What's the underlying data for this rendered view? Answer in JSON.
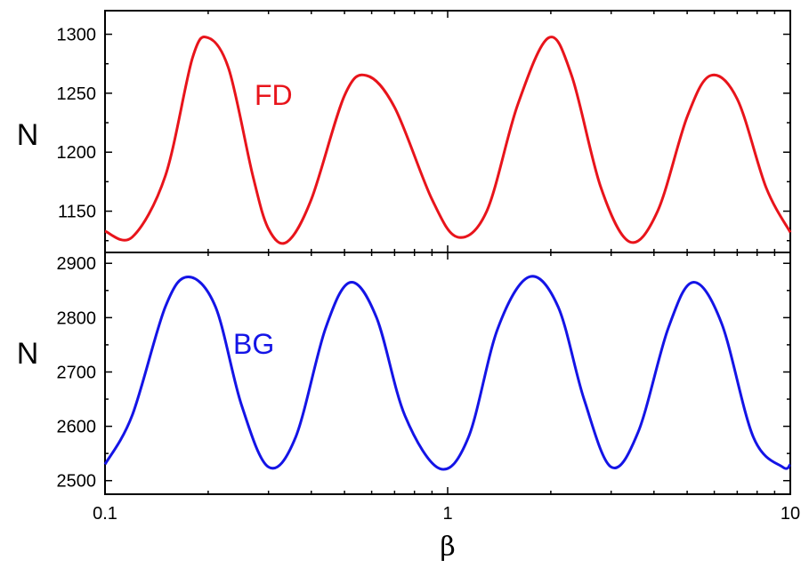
{
  "chart_data": [
    {
      "type": "line",
      "panel": "top",
      "xscale": "log",
      "xlim": [
        0.1,
        10
      ],
      "ylim": [
        1115,
        1320
      ],
      "yticks": [
        1150,
        1200,
        1250,
        1300
      ],
      "ytick_labels": [
        "1150",
        "1200",
        "1250",
        "1300"
      ],
      "ylabel": "N",
      "series": [
        {
          "name": "FD",
          "color": "#e8141b",
          "x": [
            0.1,
            0.12,
            0.15,
            0.18,
            0.2,
            0.23,
            0.27,
            0.3,
            0.34,
            0.4,
            0.5,
            0.58,
            0.7,
            0.9,
            1.07,
            1.3,
            1.6,
            1.97,
            2.3,
            2.8,
            3.4,
            4.1,
            5.0,
            5.85,
            7.0,
            8.5,
            10
          ],
          "y": [
            1133,
            1128,
            1180,
            1280,
            1297,
            1270,
            1180,
            1135,
            1124,
            1160,
            1248,
            1265,
            1238,
            1160,
            1128,
            1150,
            1240,
            1297,
            1265,
            1170,
            1124,
            1150,
            1230,
            1265,
            1245,
            1170,
            1132
          ]
        }
      ],
      "annotations": [
        {
          "text": "FD",
          "color": "#e8141b"
        }
      ]
    },
    {
      "type": "line",
      "panel": "bottom",
      "xscale": "log",
      "xlim": [
        0.1,
        10
      ],
      "ylim": [
        2475,
        2920
      ],
      "yticks": [
        2500,
        2600,
        2700,
        2800,
        2900
      ],
      "ytick_labels": [
        "2500",
        "2600",
        "2700",
        "2800",
        "2900"
      ],
      "xticks": [
        0.1,
        1,
        10
      ],
      "xtick_labels": [
        "0.1",
        "1",
        "10"
      ],
      "xlabel": "β",
      "ylabel": "N",
      "series": [
        {
          "name": "BG",
          "color": "#1414e6",
          "x": [
            0.1,
            0.12,
            0.15,
            0.175,
            0.21,
            0.25,
            0.3,
            0.36,
            0.44,
            0.52,
            0.62,
            0.75,
            0.95,
            1.15,
            1.4,
            1.73,
            2.1,
            2.5,
            3.0,
            3.6,
            4.4,
            5.2,
            6.3,
            7.8,
            9.5,
            10
          ],
          "y": [
            2530,
            2620,
            2820,
            2875,
            2820,
            2640,
            2525,
            2580,
            2780,
            2865,
            2800,
            2620,
            2522,
            2580,
            2780,
            2875,
            2820,
            2650,
            2525,
            2590,
            2780,
            2865,
            2790,
            2580,
            2525,
            2530
          ]
        }
      ],
      "annotations": [
        {
          "text": "BG",
          "color": "#1414e6"
        }
      ]
    }
  ]
}
